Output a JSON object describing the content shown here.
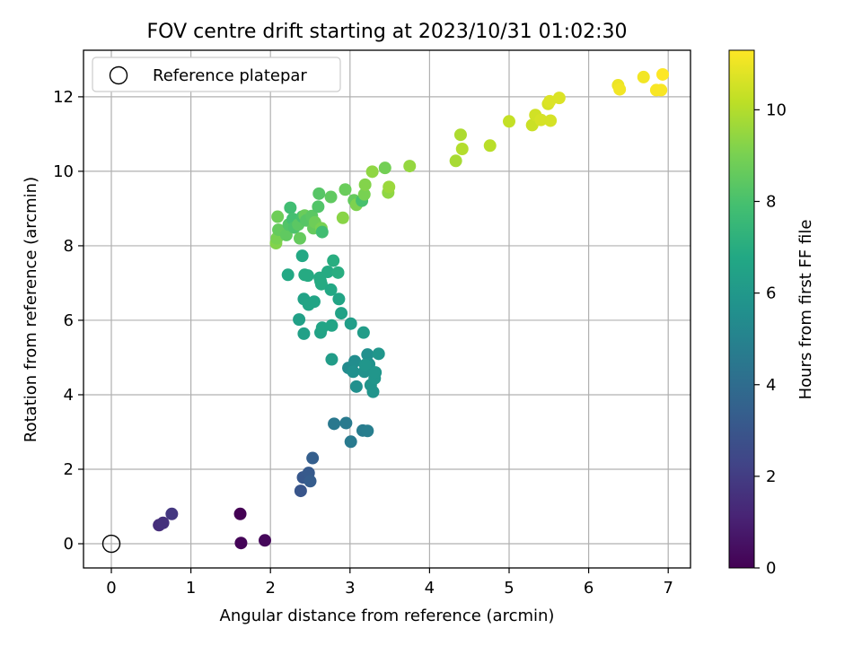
{
  "chart_data": {
    "type": "scatter",
    "title": "FOV centre drift starting at 2023/10/31 01:02:30",
    "xlabel": "Angular distance from reference (arcmin)",
    "ylabel": "Rotation from reference (arcmin)",
    "xlim": [
      -0.35,
      7.28
    ],
    "ylim": [
      -0.65,
      13.25
    ],
    "x_ticks": [
      "0",
      "1",
      "2",
      "3",
      "4",
      "5",
      "6",
      "7"
    ],
    "y_ticks": [
      "0",
      "2",
      "4",
      "6",
      "8",
      "10",
      "12"
    ],
    "grid": true,
    "legend_position": "top-left",
    "legend": [
      {
        "label": "Reference platepar",
        "marker": "hollow-circle"
      }
    ],
    "reference_point": {
      "x": 0,
      "y": 0
    },
    "colorbar": {
      "label": "Hours from first FF file",
      "colormap": "viridis",
      "range": [
        0,
        11.3
      ],
      "ticks": [
        "0",
        "2",
        "4",
        "6",
        "8",
        "10"
      ]
    },
    "points": [
      {
        "x": 1.62,
        "y": 0.8,
        "c": 0.0
      },
      {
        "x": 1.63,
        "y": 0.02,
        "c": 0.1
      },
      {
        "x": 1.93,
        "y": 0.09,
        "c": 0.2
      },
      {
        "x": 0.6,
        "y": 0.5,
        "c": 1.5
      },
      {
        "x": 0.65,
        "y": 0.56,
        "c": 1.6
      },
      {
        "x": 0.76,
        "y": 0.8,
        "c": 1.8
      },
      {
        "x": 2.38,
        "y": 1.42,
        "c": 3.0
      },
      {
        "x": 2.41,
        "y": 1.78,
        "c": 3.1
      },
      {
        "x": 2.48,
        "y": 1.9,
        "c": 3.2
      },
      {
        "x": 2.5,
        "y": 1.68,
        "c": 3.3
      },
      {
        "x": 2.53,
        "y": 2.3,
        "c": 3.4
      },
      {
        "x": 2.8,
        "y": 3.22,
        "c": 4.5
      },
      {
        "x": 2.95,
        "y": 3.24,
        "c": 4.6
      },
      {
        "x": 3.01,
        "y": 2.74,
        "c": 4.6
      },
      {
        "x": 3.16,
        "y": 3.04,
        "c": 4.7
      },
      {
        "x": 3.22,
        "y": 3.03,
        "c": 4.8
      },
      {
        "x": 2.98,
        "y": 4.72,
        "c": 5.4
      },
      {
        "x": 3.06,
        "y": 4.9,
        "c": 5.5
      },
      {
        "x": 3.04,
        "y": 4.62,
        "c": 5.6
      },
      {
        "x": 3.08,
        "y": 4.22,
        "c": 5.6
      },
      {
        "x": 3.18,
        "y": 4.62,
        "c": 5.7
      },
      {
        "x": 3.22,
        "y": 5.08,
        "c": 5.6
      },
      {
        "x": 3.24,
        "y": 4.82,
        "c": 5.7
      },
      {
        "x": 3.26,
        "y": 4.26,
        "c": 5.8
      },
      {
        "x": 3.29,
        "y": 4.08,
        "c": 5.8
      },
      {
        "x": 3.31,
        "y": 4.44,
        "c": 5.9
      },
      {
        "x": 3.32,
        "y": 4.6,
        "c": 5.9
      },
      {
        "x": 3.36,
        "y": 5.1,
        "c": 5.9
      },
      {
        "x": 3.19,
        "y": 4.8,
        "c": 5.9
      },
      {
        "x": 2.36,
        "y": 6.02,
        "c": 6.4
      },
      {
        "x": 2.42,
        "y": 5.64,
        "c": 6.4
      },
      {
        "x": 2.42,
        "y": 6.57,
        "c": 6.5
      },
      {
        "x": 2.48,
        "y": 6.42,
        "c": 6.6
      },
      {
        "x": 2.55,
        "y": 6.5,
        "c": 6.6
      },
      {
        "x": 2.63,
        "y": 5.67,
        "c": 6.5
      },
      {
        "x": 2.65,
        "y": 5.8,
        "c": 6.6
      },
      {
        "x": 2.77,
        "y": 5.86,
        "c": 6.6
      },
      {
        "x": 2.77,
        "y": 4.95,
        "c": 6.2
      },
      {
        "x": 2.86,
        "y": 6.57,
        "c": 6.6
      },
      {
        "x": 2.89,
        "y": 6.19,
        "c": 6.5
      },
      {
        "x": 3.01,
        "y": 5.91,
        "c": 6.3
      },
      {
        "x": 3.17,
        "y": 5.67,
        "c": 6.2
      },
      {
        "x": 2.22,
        "y": 7.22,
        "c": 6.8
      },
      {
        "x": 2.4,
        "y": 7.73,
        "c": 6.8
      },
      {
        "x": 2.43,
        "y": 7.22,
        "c": 6.9
      },
      {
        "x": 2.47,
        "y": 7.2,
        "c": 6.9
      },
      {
        "x": 2.62,
        "y": 7.14,
        "c": 6.9
      },
      {
        "x": 2.64,
        "y": 6.97,
        "c": 6.9
      },
      {
        "x": 2.72,
        "y": 7.3,
        "c": 6.9
      },
      {
        "x": 2.76,
        "y": 6.82,
        "c": 6.8
      },
      {
        "x": 2.79,
        "y": 7.6,
        "c": 7.0
      },
      {
        "x": 2.85,
        "y": 7.28,
        "c": 7.0
      },
      {
        "x": 2.63,
        "y": 7.05,
        "c": 6.9
      },
      {
        "x": 2.07,
        "y": 8.07,
        "c": 9.2
      },
      {
        "x": 2.08,
        "y": 8.2,
        "c": 9.0
      },
      {
        "x": 2.09,
        "y": 8.78,
        "c": 8.8
      },
      {
        "x": 2.1,
        "y": 8.43,
        "c": 8.6
      },
      {
        "x": 2.2,
        "y": 8.29,
        "c": 8.5
      },
      {
        "x": 2.23,
        "y": 8.57,
        "c": 8.2
      },
      {
        "x": 2.25,
        "y": 9.02,
        "c": 7.8
      },
      {
        "x": 2.28,
        "y": 8.72,
        "c": 7.9
      },
      {
        "x": 2.3,
        "y": 8.49,
        "c": 8.1
      },
      {
        "x": 2.35,
        "y": 8.57,
        "c": 8.4
      },
      {
        "x": 2.37,
        "y": 8.2,
        "c": 8.6
      },
      {
        "x": 2.4,
        "y": 8.78,
        "c": 8.0
      },
      {
        "x": 2.43,
        "y": 8.81,
        "c": 8.7
      },
      {
        "x": 2.45,
        "y": 8.68,
        "c": 8.3
      },
      {
        "x": 2.52,
        "y": 8.8,
        "c": 8.4
      },
      {
        "x": 2.54,
        "y": 8.47,
        "c": 8.6
      },
      {
        "x": 2.56,
        "y": 8.63,
        "c": 8.8
      },
      {
        "x": 2.6,
        "y": 9.05,
        "c": 8.2
      },
      {
        "x": 2.61,
        "y": 9.4,
        "c": 8.3
      },
      {
        "x": 2.64,
        "y": 8.47,
        "c": 9.0
      },
      {
        "x": 2.65,
        "y": 8.37,
        "c": 7.8
      },
      {
        "x": 2.76,
        "y": 9.31,
        "c": 8.5
      },
      {
        "x": 2.91,
        "y": 8.75,
        "c": 9.3
      },
      {
        "x": 2.94,
        "y": 9.51,
        "c": 8.7
      },
      {
        "x": 3.05,
        "y": 9.22,
        "c": 8.6
      },
      {
        "x": 3.08,
        "y": 9.1,
        "c": 9.1
      },
      {
        "x": 3.15,
        "y": 9.21,
        "c": 8.0
      },
      {
        "x": 3.18,
        "y": 9.38,
        "c": 9.0
      },
      {
        "x": 3.19,
        "y": 9.64,
        "c": 9.2
      },
      {
        "x": 3.28,
        "y": 9.99,
        "c": 9.4
      },
      {
        "x": 3.44,
        "y": 10.09,
        "c": 8.9
      },
      {
        "x": 3.48,
        "y": 9.43,
        "c": 9.4
      },
      {
        "x": 3.49,
        "y": 9.58,
        "c": 9.6
      },
      {
        "x": 3.75,
        "y": 10.14,
        "c": 9.5
      },
      {
        "x": 4.33,
        "y": 10.28,
        "c": 9.8
      },
      {
        "x": 4.39,
        "y": 10.98,
        "c": 9.9
      },
      {
        "x": 4.41,
        "y": 10.6,
        "c": 10.0
      },
      {
        "x": 4.76,
        "y": 10.69,
        "c": 10.1
      },
      {
        "x": 5.0,
        "y": 11.34,
        "c": 10.3
      },
      {
        "x": 5.29,
        "y": 11.24,
        "c": 10.4
      },
      {
        "x": 5.33,
        "y": 11.51,
        "c": 10.5
      },
      {
        "x": 5.4,
        "y": 11.38,
        "c": 10.6
      },
      {
        "x": 5.49,
        "y": 11.81,
        "c": 10.6
      },
      {
        "x": 5.51,
        "y": 11.88,
        "c": 10.7
      },
      {
        "x": 5.52,
        "y": 11.36,
        "c": 10.6
      },
      {
        "x": 5.63,
        "y": 11.97,
        "c": 10.7
      },
      {
        "x": 6.37,
        "y": 12.31,
        "c": 11.0
      },
      {
        "x": 6.39,
        "y": 12.2,
        "c": 11.1
      },
      {
        "x": 6.69,
        "y": 12.53,
        "c": 11.1
      },
      {
        "x": 6.85,
        "y": 12.18,
        "c": 11.2
      },
      {
        "x": 6.91,
        "y": 12.18,
        "c": 11.2
      },
      {
        "x": 6.93,
        "y": 12.6,
        "c": 11.3
      }
    ]
  }
}
